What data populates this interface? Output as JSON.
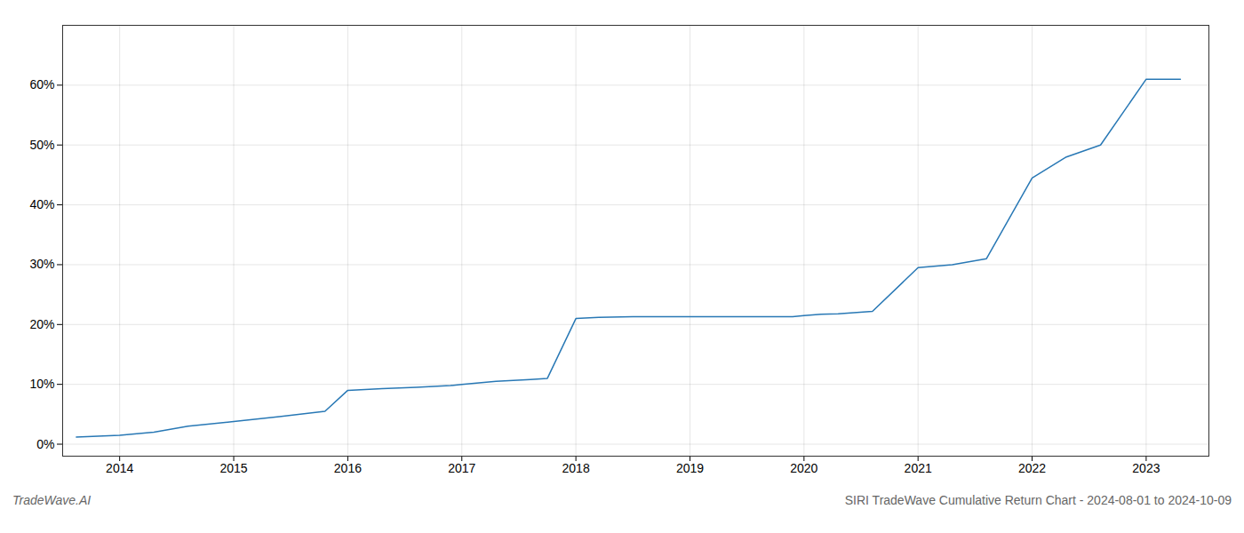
{
  "chart_data": {
    "type": "line",
    "title": "SIRI TradeWave Cumulative Return Chart - 2024-08-01 to 2024-10-09",
    "annotations": [
      "TradeWave.AI"
    ],
    "x": [
      2013.62,
      2014.0,
      2014.3,
      2014.6,
      2015.0,
      2015.4,
      2015.8,
      2016.0,
      2016.3,
      2016.6,
      2016.9,
      2017.0,
      2017.3,
      2017.6,
      2017.75,
      2018.0,
      2018.2,
      2018.5,
      2018.8,
      2019.0,
      2019.3,
      2019.6,
      2019.9,
      2020.0,
      2020.15,
      2020.3,
      2020.6,
      2021.0,
      2021.3,
      2021.6,
      2022.0,
      2022.3,
      2022.6,
      2023.0,
      2023.3
    ],
    "values": [
      0.012,
      0.015,
      0.02,
      0.03,
      0.038,
      0.046,
      0.055,
      0.09,
      0.093,
      0.095,
      0.098,
      0.1,
      0.105,
      0.108,
      0.11,
      0.21,
      0.212,
      0.213,
      0.213,
      0.213,
      0.213,
      0.213,
      0.213,
      0.215,
      0.217,
      0.218,
      0.222,
      0.295,
      0.3,
      0.31,
      0.445,
      0.48,
      0.5,
      0.61,
      0.61
    ],
    "color": "#2878b5",
    "xlim": [
      2013.5,
      2023.55
    ],
    "xticks": [
      2014,
      2015,
      2016,
      2017,
      2018,
      2019,
      2020,
      2021,
      2022,
      2023
    ],
    "ylim": [
      -0.02,
      0.7
    ],
    "yticks": [
      {
        "value": 0.0,
        "label": "0%"
      },
      {
        "value": 0.1,
        "label": "10%"
      },
      {
        "value": 0.2,
        "label": "20%"
      },
      {
        "value": 0.3,
        "label": "30%"
      },
      {
        "value": 0.4,
        "label": "40%"
      },
      {
        "value": 0.5,
        "label": "50%"
      },
      {
        "value": 0.6,
        "label": "60%"
      }
    ],
    "grid": true
  }
}
